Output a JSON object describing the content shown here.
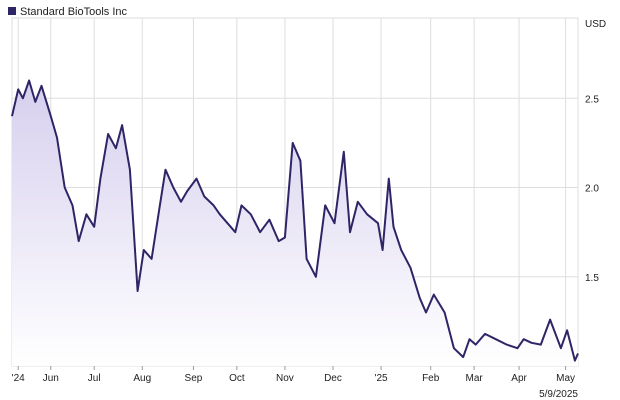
{
  "chart_data": {
    "type": "area",
    "title": "",
    "legend": {
      "label": "Standard BioTools Inc",
      "placement": "top-left"
    },
    "unit_label": "USD",
    "date_label": "5/9/2025",
    "x_ticks": [
      "'24",
      "Jun",
      "Jul",
      "Aug",
      "Sep",
      "Oct",
      "Nov",
      "Dec",
      "'25",
      "Feb",
      "Mar",
      "Apr",
      "May"
    ],
    "ylim": [
      1.0,
      2.95
    ],
    "y_ticks": [
      1.5,
      2.0,
      2.5
    ],
    "y_tick_labels": [
      "1.5",
      "2.0",
      "2.5"
    ],
    "grid": true,
    "colors": {
      "line": "#2e2566",
      "fill_top": "#d6cfee",
      "fill_bottom": "#ffffff",
      "grid": "#dddddd"
    },
    "series": [
      {
        "x": [
          "2024-05-09",
          "2024-05-13",
          "2024-05-16",
          "2024-05-20",
          "2024-05-24",
          "2024-05-28",
          "2024-06-03",
          "2024-06-07",
          "2024-06-12",
          "2024-06-17",
          "2024-06-21",
          "2024-06-26",
          "2024-07-01",
          "2024-07-05",
          "2024-07-10",
          "2024-07-15",
          "2024-07-19",
          "2024-07-24",
          "2024-07-29",
          "2024-08-02",
          "2024-08-07",
          "2024-08-12",
          "2024-08-16",
          "2024-08-21",
          "2024-08-26",
          "2024-08-30",
          "2024-09-05",
          "2024-09-10",
          "2024-09-16",
          "2024-09-20",
          "2024-09-25",
          "2024-09-30",
          "2024-10-04",
          "2024-10-10",
          "2024-10-16",
          "2024-10-22",
          "2024-10-28",
          "2024-11-01",
          "2024-11-06",
          "2024-11-11",
          "2024-11-15",
          "2024-11-21",
          "2024-11-27",
          "2024-12-03",
          "2024-12-09",
          "2024-12-13",
          "2024-12-18",
          "2024-12-24",
          "2024-12-31",
          "2025-01-03",
          "2025-01-07",
          "2025-01-10",
          "2025-01-15",
          "2025-01-21",
          "2025-01-27",
          "2025-01-31",
          "2025-02-05",
          "2025-02-12",
          "2025-02-18",
          "2025-02-24",
          "2025-02-28",
          "2025-03-04",
          "2025-03-10",
          "2025-03-17",
          "2025-03-24",
          "2025-03-31",
          "2025-04-04",
          "2025-04-09",
          "2025-04-15",
          "2025-04-21",
          "2025-04-28",
          "2025-05-02",
          "2025-05-07",
          "2025-05-09"
        ],
        "values": [
          2.4,
          2.55,
          2.5,
          2.6,
          2.48,
          2.57,
          2.4,
          2.28,
          2.0,
          1.9,
          1.7,
          1.85,
          1.78,
          2.05,
          2.3,
          2.22,
          2.35,
          2.1,
          1.42,
          1.65,
          1.6,
          1.88,
          2.1,
          2.0,
          1.92,
          1.98,
          2.05,
          1.95,
          1.9,
          1.85,
          1.8,
          1.75,
          1.9,
          1.85,
          1.75,
          1.82,
          1.7,
          1.72,
          2.25,
          2.15,
          1.6,
          1.5,
          1.9,
          1.8,
          2.2,
          1.75,
          1.92,
          1.85,
          1.8,
          1.65,
          2.05,
          1.78,
          1.65,
          1.55,
          1.38,
          1.3,
          1.4,
          1.3,
          1.1,
          1.05,
          1.15,
          1.12,
          1.18,
          1.15,
          1.12,
          1.1,
          1.15,
          1.13,
          1.12,
          1.26,
          1.1,
          1.2,
          1.03,
          1.07
        ]
      }
    ]
  }
}
